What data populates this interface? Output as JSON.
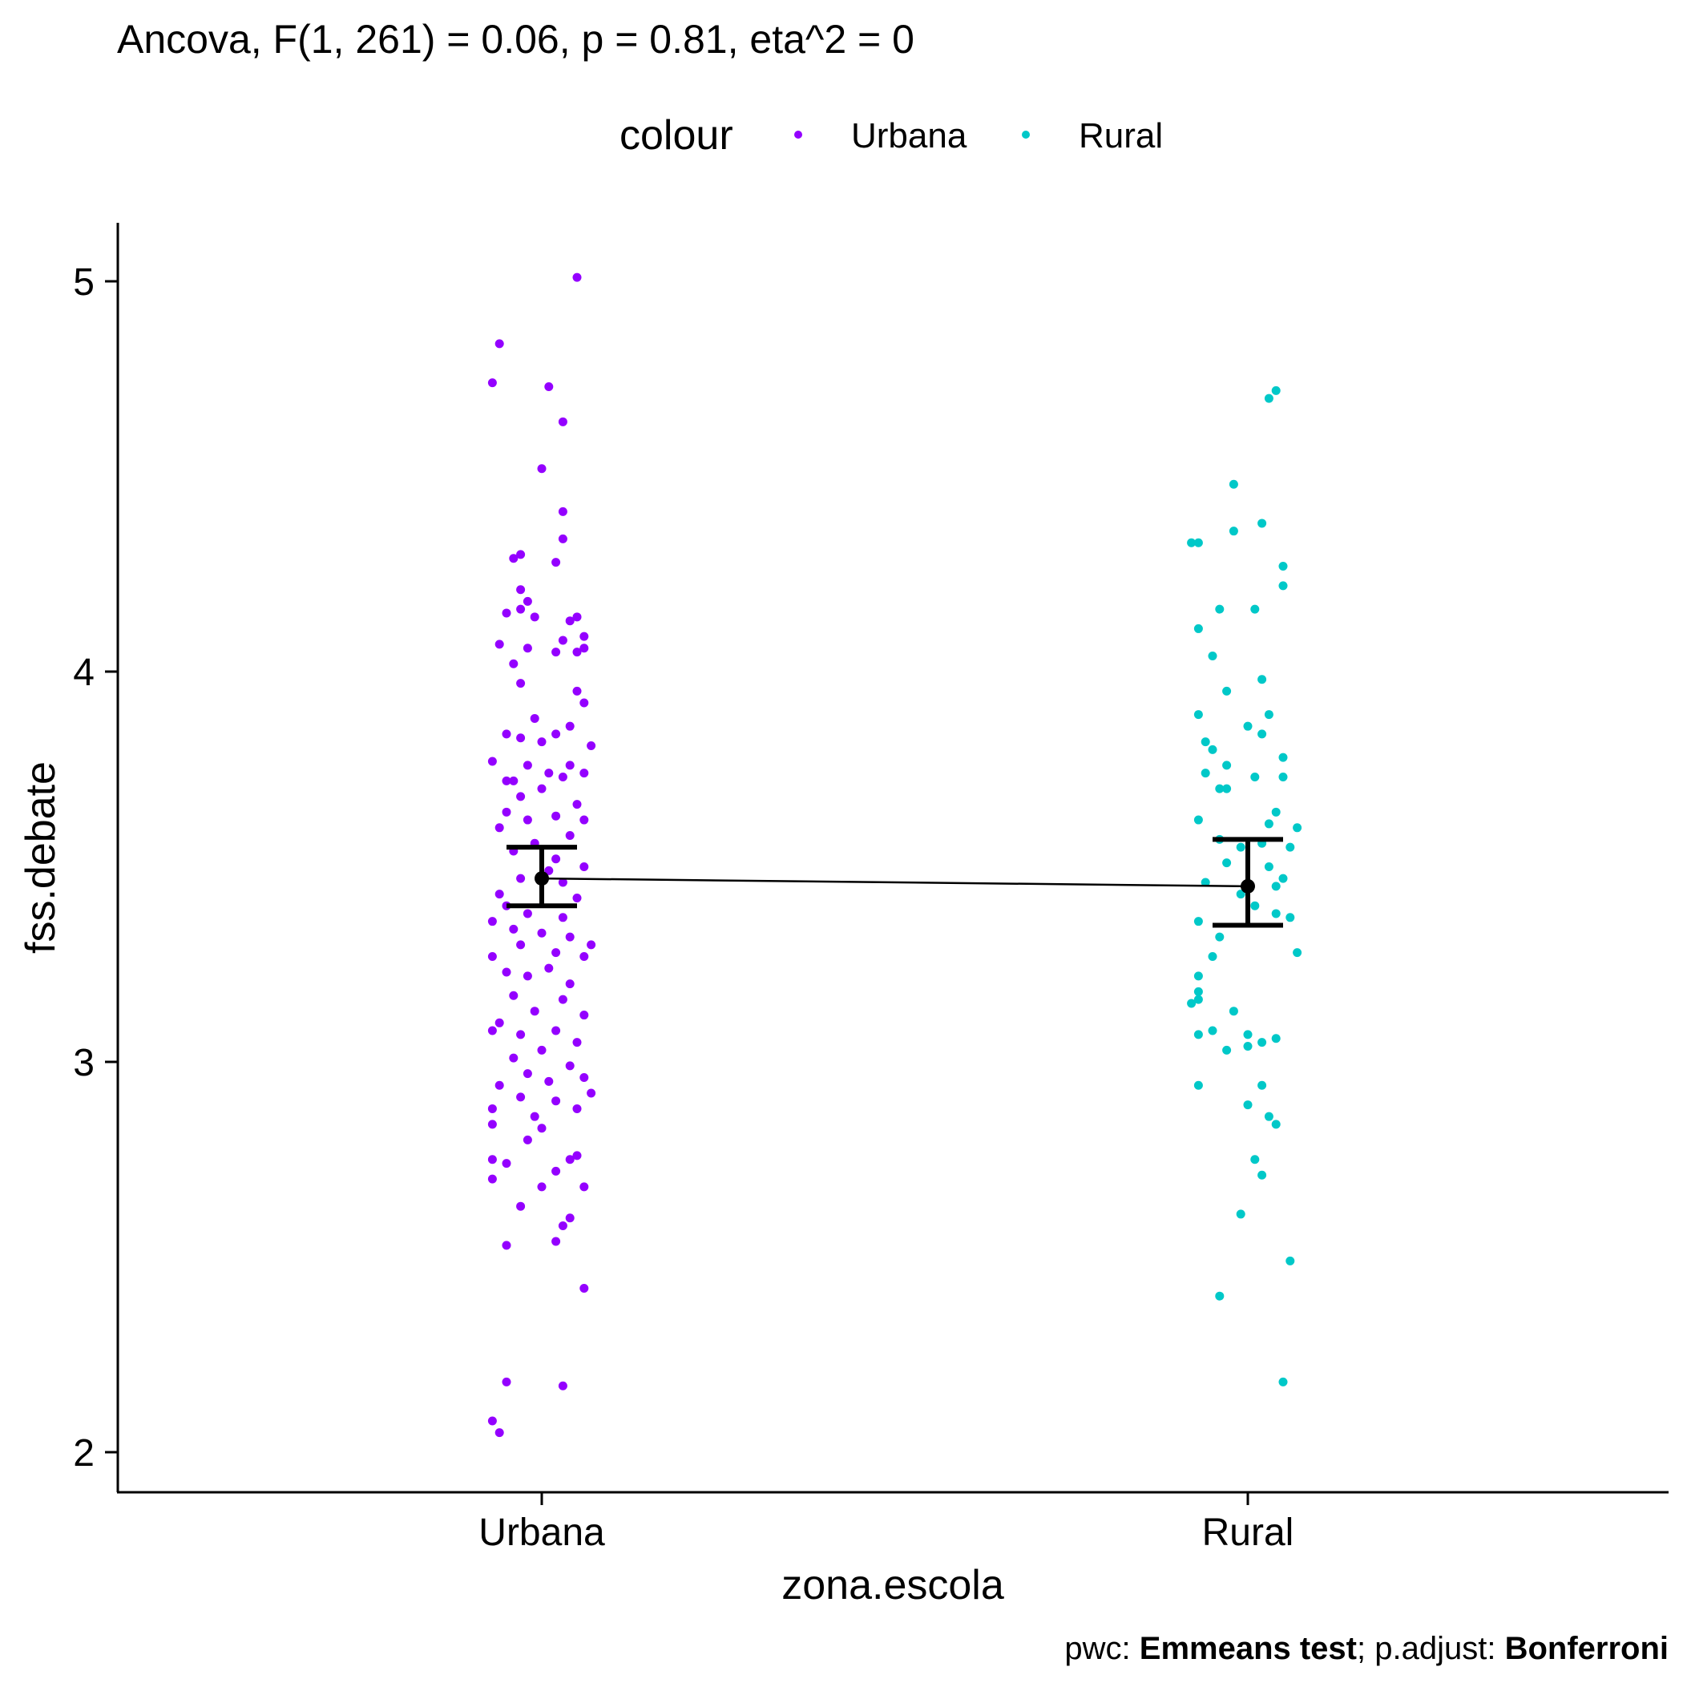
{
  "chart_data": {
    "type": "scatter",
    "title": "Ancova, F(1, 261) = 0.06, p = 0.81, eta^2 = 0",
    "xlabel": "zona.escola",
    "ylabel": "fss.debate",
    "categories": [
      "Urbana",
      "Rural"
    ],
    "ylim": [
      1.9,
      5.15
    ],
    "yticks": [
      2,
      3,
      4,
      5
    ],
    "grid": false,
    "legend": {
      "title": "colour",
      "position": "top",
      "entries": [
        {
          "label": "Urbana",
          "color": "#9400ff"
        },
        {
          "label": "Rural",
          "color": "#00c8c8"
        }
      ]
    },
    "caption": {
      "prefix": "pwc: ",
      "method": "Emmeans test",
      "middle": "; p.adjust: ",
      "adjust": "Bonferroni"
    },
    "emmeans": [
      {
        "category": "Urbana",
        "mean": 3.47,
        "lower": 3.4,
        "upper": 3.55
      },
      {
        "category": "Rural",
        "mean": 3.45,
        "lower": 3.35,
        "upper": 3.57
      }
    ],
    "series": [
      {
        "name": "Urbana",
        "color": "#9400ff",
        "points": [
          [
            -0.06,
            4.84
          ],
          [
            0.05,
            5.01
          ],
          [
            -0.07,
            4.74
          ],
          [
            0.01,
            4.73
          ],
          [
            0.03,
            4.64
          ],
          [
            0.0,
            4.52
          ],
          [
            0.03,
            4.41
          ],
          [
            0.03,
            4.34
          ],
          [
            -0.03,
            4.3
          ],
          [
            -0.04,
            4.29
          ],
          [
            0.02,
            4.28
          ],
          [
            -0.03,
            4.21
          ],
          [
            -0.02,
            4.18
          ],
          [
            0.05,
            4.14
          ],
          [
            -0.03,
            4.16
          ],
          [
            -0.05,
            4.15
          ],
          [
            -0.01,
            4.14
          ],
          [
            0.04,
            4.13
          ],
          [
            0.06,
            4.09
          ],
          [
            0.03,
            4.08
          ],
          [
            -0.06,
            4.07
          ],
          [
            0.05,
            4.05
          ],
          [
            -0.02,
            4.06
          ],
          [
            0.02,
            4.05
          ],
          [
            -0.04,
            4.02
          ],
          [
            0.06,
            4.06
          ],
          [
            -0.03,
            3.97
          ],
          [
            0.05,
            3.95
          ],
          [
            0.06,
            3.92
          ],
          [
            -0.01,
            3.88
          ],
          [
            0.04,
            3.86
          ],
          [
            -0.05,
            3.84
          ],
          [
            -0.03,
            3.83
          ],
          [
            0.0,
            3.82
          ],
          [
            0.07,
            3.81
          ],
          [
            0.02,
            3.84
          ],
          [
            -0.07,
            3.77
          ],
          [
            -0.05,
            3.72
          ],
          [
            0.01,
            3.74
          ],
          [
            0.04,
            3.76
          ],
          [
            -0.02,
            3.76
          ],
          [
            -0.04,
            3.72
          ],
          [
            0.06,
            3.74
          ],
          [
            -0.03,
            3.68
          ],
          [
            0.0,
            3.7
          ],
          [
            0.03,
            3.73
          ],
          [
            -0.05,
            3.64
          ],
          [
            0.05,
            3.66
          ],
          [
            -0.02,
            3.62
          ],
          [
            0.02,
            3.63
          ],
          [
            0.06,
            3.62
          ],
          [
            -0.06,
            3.6
          ],
          [
            0.04,
            3.58
          ],
          [
            -0.01,
            3.56
          ],
          [
            -0.04,
            3.54
          ],
          [
            0.02,
            3.52
          ],
          [
            0.06,
            3.5
          ],
          [
            -0.03,
            3.47
          ],
          [
            0.01,
            3.49
          ],
          [
            -0.06,
            3.43
          ],
          [
            0.03,
            3.46
          ],
          [
            -0.05,
            3.4
          ],
          [
            0.05,
            3.42
          ],
          [
            -0.02,
            3.38
          ],
          [
            0.03,
            3.37
          ],
          [
            -0.07,
            3.36
          ],
          [
            -0.04,
            3.34
          ],
          [
            0.0,
            3.33
          ],
          [
            0.04,
            3.32
          ],
          [
            0.07,
            3.3
          ],
          [
            -0.03,
            3.3
          ],
          [
            0.02,
            3.28
          ],
          [
            -0.07,
            3.27
          ],
          [
            0.06,
            3.27
          ],
          [
            -0.05,
            3.23
          ],
          [
            0.01,
            3.24
          ],
          [
            -0.02,
            3.22
          ],
          [
            0.04,
            3.2
          ],
          [
            -0.04,
            3.17
          ],
          [
            0.03,
            3.16
          ],
          [
            0.06,
            3.12
          ],
          [
            -0.01,
            3.13
          ],
          [
            -0.06,
            3.1
          ],
          [
            0.02,
            3.08
          ],
          [
            -0.03,
            3.07
          ],
          [
            0.05,
            3.05
          ],
          [
            -0.07,
            3.08
          ],
          [
            0.0,
            3.03
          ],
          [
            -0.04,
            3.01
          ],
          [
            0.04,
            2.99
          ],
          [
            -0.02,
            2.97
          ],
          [
            0.06,
            2.96
          ],
          [
            -0.06,
            2.94
          ],
          [
            0.01,
            2.95
          ],
          [
            0.07,
            2.92
          ],
          [
            -0.03,
            2.91
          ],
          [
            0.02,
            2.9
          ],
          [
            -0.07,
            2.88
          ],
          [
            0.05,
            2.88
          ],
          [
            -0.01,
            2.86
          ],
          [
            -0.07,
            2.84
          ],
          [
            0.0,
            2.83
          ],
          [
            -0.02,
            2.8
          ],
          [
            0.05,
            2.76
          ],
          [
            -0.07,
            2.75
          ],
          [
            0.04,
            2.75
          ],
          [
            -0.05,
            2.74
          ],
          [
            0.02,
            2.72
          ],
          [
            -0.07,
            2.7
          ],
          [
            0.06,
            2.68
          ],
          [
            0.0,
            2.68
          ],
          [
            -0.03,
            2.63
          ],
          [
            0.04,
            2.6
          ],
          [
            0.03,
            2.58
          ],
          [
            0.02,
            2.54
          ],
          [
            -0.05,
            2.53
          ],
          [
            0.06,
            2.42
          ],
          [
            -0.05,
            2.18
          ],
          [
            0.03,
            2.17
          ],
          [
            -0.07,
            2.08
          ],
          [
            -0.06,
            2.05
          ]
        ]
      },
      {
        "name": "Rural",
        "color": "#00c8c8",
        "points": [
          [
            0.04,
            4.72
          ],
          [
            0.03,
            4.7
          ],
          [
            -0.02,
            4.48
          ],
          [
            0.02,
            4.38
          ],
          [
            -0.02,
            4.36
          ],
          [
            -0.08,
            4.33
          ],
          [
            -0.07,
            4.33
          ],
          [
            0.05,
            4.27
          ],
          [
            0.05,
            4.22
          ],
          [
            -0.04,
            4.16
          ],
          [
            0.01,
            4.16
          ],
          [
            -0.07,
            4.11
          ],
          [
            -0.05,
            4.04
          ],
          [
            0.02,
            3.98
          ],
          [
            -0.03,
            3.95
          ],
          [
            -0.07,
            3.89
          ],
          [
            0.03,
            3.89
          ],
          [
            0.0,
            3.86
          ],
          [
            0.02,
            3.84
          ],
          [
            -0.06,
            3.82
          ],
          [
            -0.05,
            3.8
          ],
          [
            0.05,
            3.78
          ],
          [
            -0.03,
            3.76
          ],
          [
            0.01,
            3.73
          ],
          [
            -0.06,
            3.74
          ],
          [
            0.05,
            3.73
          ],
          [
            -0.04,
            3.7
          ],
          [
            -0.03,
            3.7
          ],
          [
            0.04,
            3.64
          ],
          [
            -0.07,
            3.62
          ],
          [
            0.03,
            3.61
          ],
          [
            0.07,
            3.6
          ],
          [
            -0.04,
            3.57
          ],
          [
            0.02,
            3.56
          ],
          [
            0.06,
            3.55
          ],
          [
            -0.01,
            3.55
          ],
          [
            -0.03,
            3.51
          ],
          [
            0.03,
            3.5
          ],
          [
            0.05,
            3.47
          ],
          [
            -0.06,
            3.46
          ],
          [
            0.04,
            3.45
          ],
          [
            -0.01,
            3.43
          ],
          [
            0.01,
            3.4
          ],
          [
            0.04,
            3.38
          ],
          [
            0.06,
            3.37
          ],
          [
            -0.07,
            3.36
          ],
          [
            -0.04,
            3.32
          ],
          [
            0.07,
            3.28
          ],
          [
            -0.05,
            3.27
          ],
          [
            -0.07,
            3.22
          ],
          [
            -0.07,
            3.18
          ],
          [
            -0.07,
            3.16
          ],
          [
            -0.08,
            3.15
          ],
          [
            -0.02,
            3.13
          ],
          [
            -0.05,
            3.08
          ],
          [
            -0.07,
            3.07
          ],
          [
            0.0,
            3.07
          ],
          [
            0.04,
            3.06
          ],
          [
            0.02,
            3.05
          ],
          [
            -0.03,
            3.03
          ],
          [
            0.0,
            3.04
          ],
          [
            -0.07,
            2.94
          ],
          [
            0.02,
            2.94
          ],
          [
            0.0,
            2.89
          ],
          [
            0.03,
            2.86
          ],
          [
            0.04,
            2.84
          ],
          [
            0.01,
            2.75
          ],
          [
            0.02,
            2.71
          ],
          [
            -0.01,
            2.61
          ],
          [
            0.06,
            2.49
          ],
          [
            -0.04,
            2.4
          ],
          [
            0.05,
            2.18
          ]
        ]
      }
    ]
  }
}
